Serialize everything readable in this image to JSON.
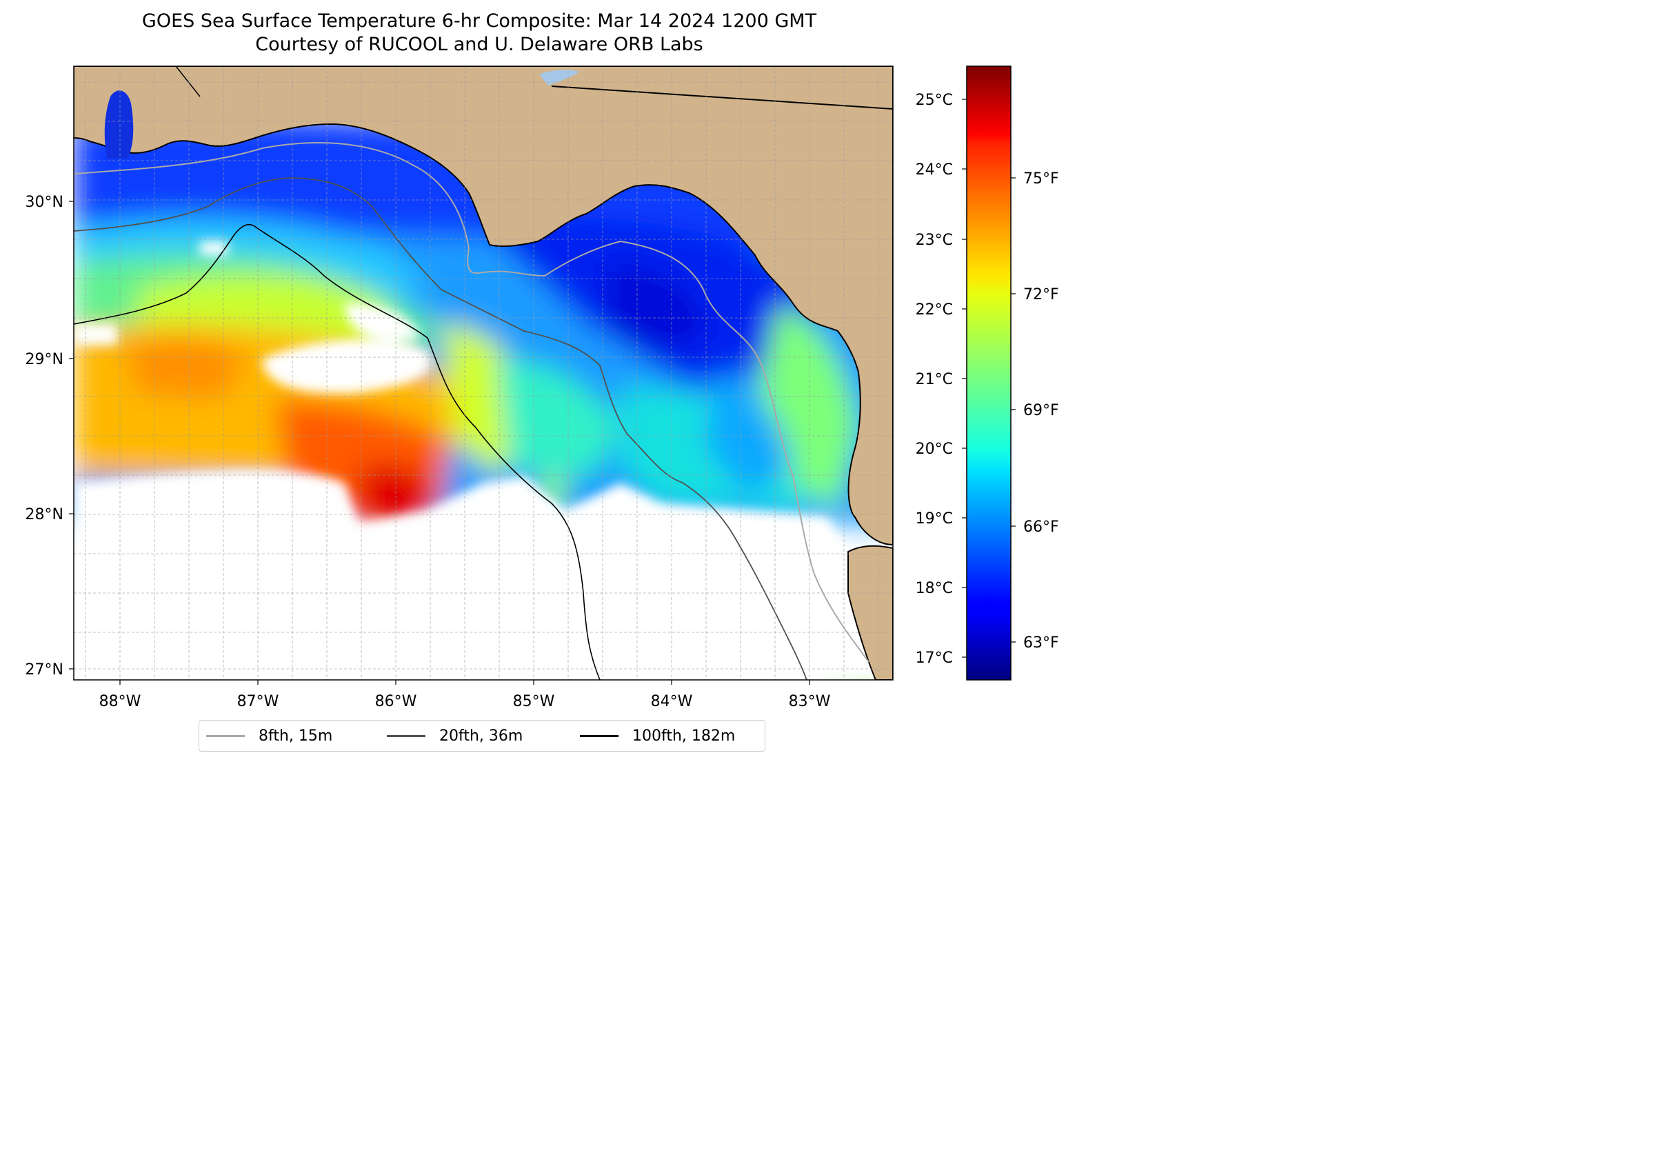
{
  "title": {
    "line1": "GOES Sea Surface Temperature 6-hr Composite: Mar 14 2024 1200 GMT",
    "line2": "Courtesy of RUCOOL and U. Delaware ORB Labs"
  },
  "map": {
    "extent": {
      "lon_min": -88.33,
      "lon_max": -82.4,
      "lat_min": 26.93,
      "lat_max": 30.85
    },
    "land_color": "#D2B48C",
    "no_data_color": "#FFFFFF",
    "gridlines": "dashed gray",
    "lon_ticks": [
      {
        "value": -88,
        "label": "88°W"
      },
      {
        "value": -87,
        "label": "87°W"
      },
      {
        "value": -86,
        "label": "86°W"
      },
      {
        "value": -85,
        "label": "85°W"
      },
      {
        "value": -84,
        "label": "84°W"
      },
      {
        "value": -83,
        "label": "83°W"
      }
    ],
    "lat_ticks": [
      {
        "value": 30,
        "label": "30°N"
      },
      {
        "value": 29,
        "label": "29°N"
      },
      {
        "value": 28,
        "label": "28°N"
      },
      {
        "value": 27,
        "label": "27°N"
      }
    ]
  },
  "colorbar": {
    "colormap": "jet",
    "range_c": [
      16.7,
      25.5
    ],
    "celsius_ticks": [
      {
        "value": 25,
        "label": "25°C"
      },
      {
        "value": 24,
        "label": "24°C"
      },
      {
        "value": 23,
        "label": "23°C"
      },
      {
        "value": 22,
        "label": "22°C"
      },
      {
        "value": 21,
        "label": "21°C"
      },
      {
        "value": 20,
        "label": "20°C"
      },
      {
        "value": 19,
        "label": "19°C"
      },
      {
        "value": 18,
        "label": "18°C"
      },
      {
        "value": 17,
        "label": "17°C"
      }
    ],
    "fahrenheit_ticks": [
      {
        "value": 75,
        "label": "75°F"
      },
      {
        "value": 72,
        "label": "72°F"
      },
      {
        "value": 69,
        "label": "69°F"
      },
      {
        "value": 66,
        "label": "66°F"
      },
      {
        "value": 63,
        "label": "63°F"
      }
    ]
  },
  "legend": {
    "placement": "bottom-center",
    "items": [
      {
        "label": "8fth, 15m",
        "color": "#A9A9A9"
      },
      {
        "label": "20fth, 36m",
        "color": "#505050"
      },
      {
        "label": "100fth, 182m",
        "color": "#000000"
      }
    ]
  }
}
